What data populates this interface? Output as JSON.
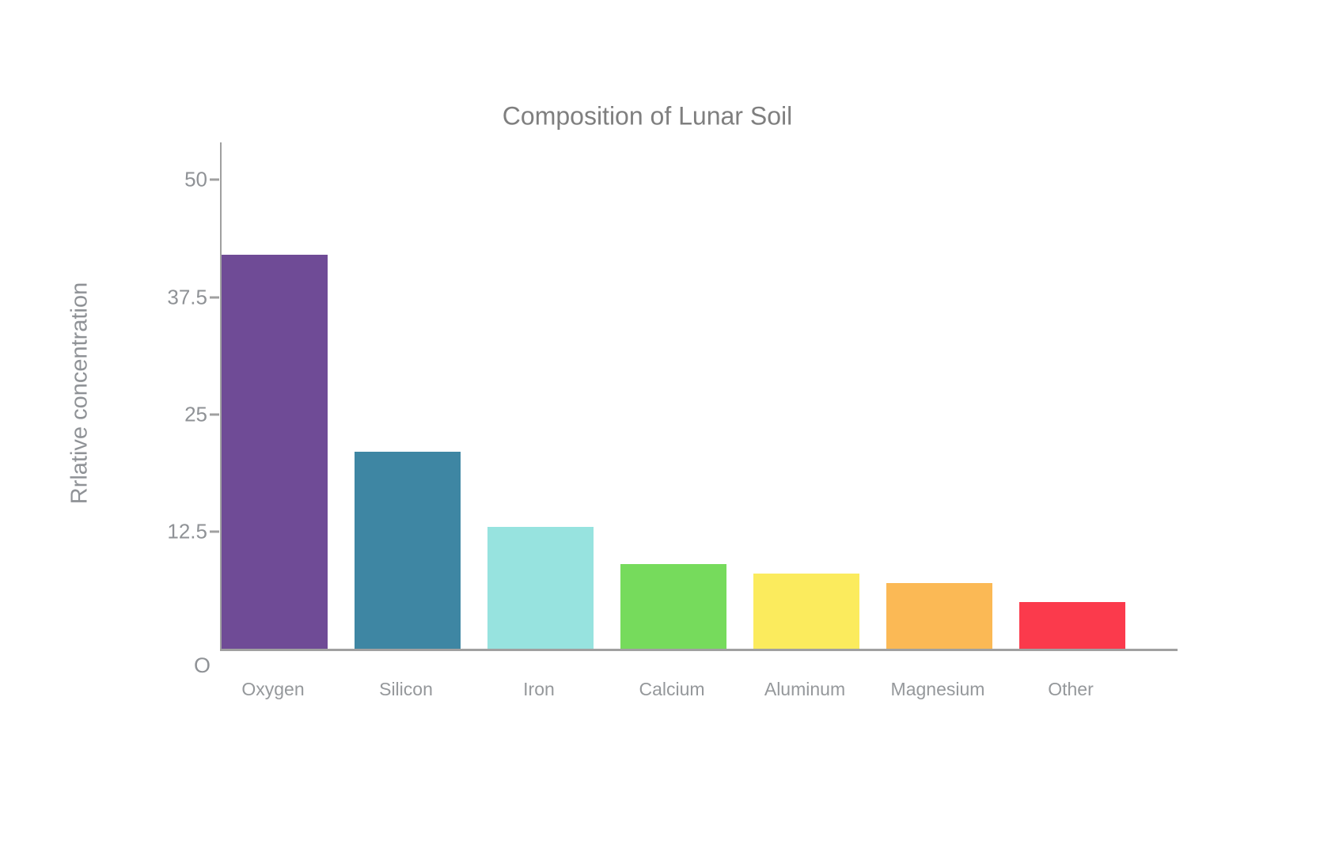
{
  "title": "Composition of Lunar Soil",
  "chart_data": {
    "type": "bar",
    "title": "Composition of Lunar Soil",
    "subtitle": "",
    "xlabel": "",
    "ylabel": "Rrlative concentration",
    "categories": [
      "Oxygen",
      "Silicon",
      "Iron",
      "Calcium",
      "Aluminum",
      "Magnesium",
      "Other"
    ],
    "values": [
      42,
      21,
      13,
      9,
      8,
      7,
      5
    ],
    "bar_colors": [
      "#6f4b96",
      "#3e86a3",
      "#97e3df",
      "#76db5c",
      "#fbeb5d",
      "#fbb955",
      "#fb3a4c"
    ],
    "ylim": [
      0,
      54
    ],
    "yticks": [
      50,
      37.5,
      25,
      12.5
    ],
    "ytick_labels": [
      "50",
      "37.5",
      "25",
      "12.5"
    ],
    "origin_label": "O",
    "grid": false,
    "legend": false
  },
  "colors": {
    "background": "#ffffff",
    "axis": "#a0a0a0",
    "title_text": "#7f7f7f",
    "tick_text": "#8f9296",
    "category_text": "#95989b"
  }
}
